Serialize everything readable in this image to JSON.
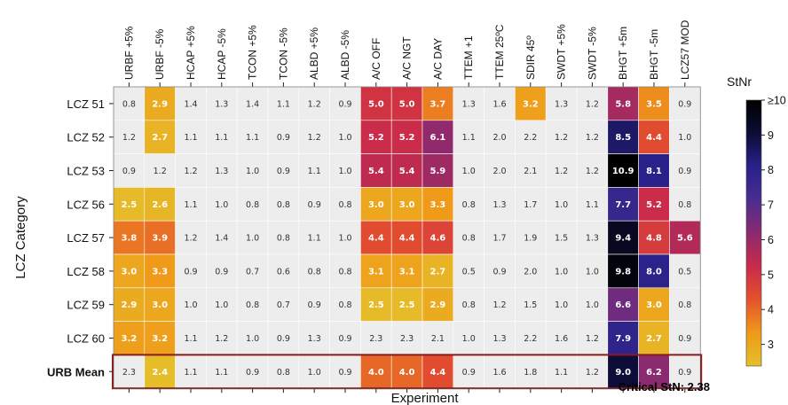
{
  "chart_data": {
    "type": "heatmap",
    "title": "",
    "xlabel": "Experiment",
    "ylabel": "LCZ Category",
    "colorbar": {
      "label": "StNr",
      "min": 2.38,
      "max": 10,
      "ticks": [
        "3",
        "4",
        "5",
        "6",
        "7",
        "8",
        "9",
        "≥10"
      ],
      "tick_values": [
        3,
        4,
        5,
        6,
        7,
        8,
        9,
        10
      ],
      "colors": [
        "#e5bf2a",
        "#ef9a18",
        "#e4512e",
        "#c92a4a",
        "#8b2a6f",
        "#4a2d8f",
        "#28228a",
        "#0d0c35",
        "#000000"
      ]
    },
    "critical_label": "Critical StN: 2.38",
    "critical_value": 2.38,
    "columns": [
      "URBF +5%",
      "URBF -5%",
      "HCAP +5%",
      "HCAP -5%",
      "TCON +5%",
      "TCON -5%",
      "ALBD +5%",
      "ALBD -5%",
      "A/C OFF",
      "A/C NGT",
      "A/C DAY",
      "TTEM +1",
      "TTEM 25ºC",
      "SDIR 45º",
      "SWDT +5%",
      "SWDT -5%",
      "BHGT +5m",
      "BHGT -5m",
      "LCZ57 MOD"
    ],
    "rows": [
      {
        "label": "LCZ 51",
        "values": [
          "0.8",
          "2.9",
          "1.4",
          "1.3",
          "1.4",
          "1.1",
          "1.2",
          "0.9",
          "5.0",
          "5.0",
          "3.7",
          "1.3",
          "1.6",
          "3.2",
          "1.3",
          "1.2",
          "5.8",
          "3.5",
          "0.9"
        ]
      },
      {
        "label": "LCZ 52",
        "values": [
          "1.2",
          "2.7",
          "1.1",
          "1.1",
          "1.1",
          "0.9",
          "1.2",
          "1.0",
          "5.2",
          "5.2",
          "6.1",
          "1.1",
          "2.0",
          "2.2",
          "1.2",
          "1.2",
          "8.5",
          "4.4",
          "1.0"
        ]
      },
      {
        "label": "LCZ 53",
        "values": [
          "0.9",
          "1.2",
          "1.2",
          "1.3",
          "1.0",
          "0.9",
          "1.1",
          "1.0",
          "5.4",
          "5.4",
          "5.9",
          "1.0",
          "2.0",
          "2.1",
          "1.2",
          "1.2",
          "10.9",
          "8.1",
          "0.9"
        ]
      },
      {
        "label": "LCZ 56",
        "values": [
          "2.5",
          "2.6",
          "1.1",
          "1.0",
          "0.8",
          "0.8",
          "0.9",
          "0.8",
          "3.0",
          "3.0",
          "3.3",
          "0.8",
          "1.3",
          "1.7",
          "1.0",
          "1.1",
          "7.7",
          "5.2",
          "0.8"
        ]
      },
      {
        "label": "LCZ 57",
        "values": [
          "3.8",
          "3.9",
          "1.2",
          "1.4",
          "1.0",
          "0.8",
          "1.1",
          "1.0",
          "4.4",
          "4.4",
          "4.6",
          "0.8",
          "1.7",
          "1.9",
          "1.5",
          "1.3",
          "9.4",
          "4.8",
          "5.6"
        ]
      },
      {
        "label": "LCZ 58",
        "values": [
          "3.0",
          "3.3",
          "0.9",
          "0.9",
          "0.7",
          "0.6",
          "0.8",
          "0.8",
          "3.1",
          "3.1",
          "2.7",
          "0.5",
          "0.9",
          "2.0",
          "1.0",
          "1.0",
          "9.8",
          "8.0",
          "0.5"
        ]
      },
      {
        "label": "LCZ 59",
        "values": [
          "2.9",
          "3.0",
          "1.0",
          "1.0",
          "0.8",
          "0.7",
          "0.9",
          "0.8",
          "2.5",
          "2.5",
          "2.9",
          "0.8",
          "1.2",
          "1.5",
          "1.0",
          "1.0",
          "6.6",
          "3.0",
          "0.8"
        ]
      },
      {
        "label": "LCZ 60",
        "values": [
          "3.2",
          "3.2",
          "1.1",
          "1.2",
          "1.0",
          "0.9",
          "1.3",
          "0.9",
          "2.3",
          "2.3",
          "2.1",
          "1.0",
          "1.3",
          "2.2",
          "1.6",
          "1.2",
          "7.9",
          "2.7",
          "0.9"
        ]
      },
      {
        "label": "URB Mean",
        "values": [
          "2.3",
          "2.4",
          "1.1",
          "1.1",
          "0.9",
          "0.8",
          "1.0",
          "0.9",
          "4.0",
          "4.0",
          "4.4",
          "0.9",
          "1.6",
          "1.8",
          "1.1",
          "1.2",
          "9.0",
          "6.2",
          "0.9"
        ],
        "highlight": true
      }
    ],
    "colors": {
      "below_critical": "#ededed",
      "highlight_border": "#8b1a1a",
      "grid_line": "#ffffff"
    }
  }
}
